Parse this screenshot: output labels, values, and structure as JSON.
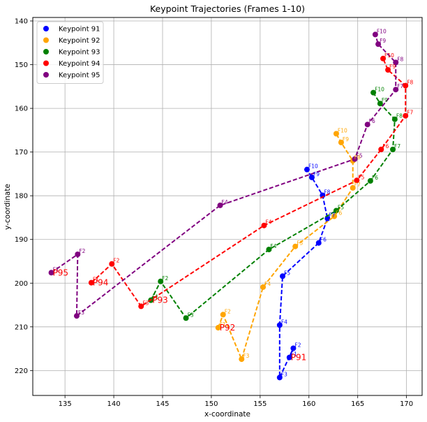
{
  "chart_data": {
    "type": "line",
    "title": "Keypoint Trajectories (Frames 1-10)",
    "xlabel": "x-coordinate",
    "ylabel": "y-coordinate",
    "xlim": [
      131.7,
      171.6
    ],
    "ylim": [
      225.7,
      139.2
    ],
    "y_inverted": true,
    "grid": true,
    "legend_position": "upper-left",
    "x_ticks": [
      135,
      140,
      145,
      150,
      155,
      160,
      165,
      170
    ],
    "y_ticks": [
      140,
      150,
      160,
      170,
      180,
      190,
      200,
      210,
      220
    ],
    "series": [
      {
        "name": "Keypoint 91",
        "color": "#0000ff",
        "end_label": "P91",
        "points": [
          {
            "frame": "F1",
            "x": 158.0,
            "y": 217.0
          },
          {
            "frame": "F2",
            "x": 158.4,
            "y": 214.9
          },
          {
            "frame": "F3",
            "x": 157.0,
            "y": 221.6
          },
          {
            "frame": "F4",
            "x": 157.0,
            "y": 209.6
          },
          {
            "frame": "F5",
            "x": 157.3,
            "y": 198.4
          },
          {
            "frame": "F6",
            "x": 161.0,
            "y": 190.8
          },
          {
            "frame": "F7",
            "x": 161.9,
            "y": 185.2
          },
          {
            "frame": "F8",
            "x": 161.4,
            "y": 179.9
          },
          {
            "frame": "F9",
            "x": 160.3,
            "y": 175.8
          },
          {
            "frame": "F10",
            "x": 159.8,
            "y": 174.0
          }
        ]
      },
      {
        "name": "Keypoint 92",
        "color": "#ffa500",
        "end_label": "P92",
        "points": [
          {
            "frame": "F1",
            "x": 150.7,
            "y": 210.2
          },
          {
            "frame": "F2",
            "x": 151.2,
            "y": 207.2
          },
          {
            "frame": "F3",
            "x": 153.1,
            "y": 217.4
          },
          {
            "frame": "F4",
            "x": 155.3,
            "y": 200.9
          },
          {
            "frame": "F5",
            "x": 158.6,
            "y": 191.6
          },
          {
            "frame": "F6",
            "x": 162.6,
            "y": 184.7
          },
          {
            "frame": "F7",
            "x": 164.5,
            "y": 178.2
          },
          {
            "frame": "F8",
            "x": 164.5,
            "y": 172.0
          },
          {
            "frame": "F9",
            "x": 163.3,
            "y": 167.8
          },
          {
            "frame": "F10",
            "x": 162.8,
            "y": 165.8
          }
        ]
      },
      {
        "name": "Keypoint 93",
        "color": "#008000",
        "end_label": "P93",
        "points": [
          {
            "frame": "F1",
            "x": 143.8,
            "y": 203.9
          },
          {
            "frame": "F2",
            "x": 144.8,
            "y": 199.6
          },
          {
            "frame": "F3",
            "x": 147.4,
            "y": 208.0
          },
          {
            "frame": "F4",
            "x": 155.9,
            "y": 192.3
          },
          {
            "frame": "F5",
            "x": 162.8,
            "y": 183.4
          },
          {
            "frame": "F6",
            "x": 166.3,
            "y": 176.6
          },
          {
            "frame": "F7",
            "x": 168.6,
            "y": 169.4
          },
          {
            "frame": "F8",
            "x": 168.8,
            "y": 162.5
          },
          {
            "frame": "F9",
            "x": 167.3,
            "y": 158.9
          },
          {
            "frame": "F10",
            "x": 166.6,
            "y": 156.4
          }
        ]
      },
      {
        "name": "Keypoint 94",
        "color": "#ff0000",
        "end_label": "P94",
        "points": [
          {
            "frame": "F1",
            "x": 137.7,
            "y": 199.9
          },
          {
            "frame": "F2",
            "x": 139.8,
            "y": 195.6
          },
          {
            "frame": "F3",
            "x": 142.8,
            "y": 205.3
          },
          {
            "frame": "F4",
            "x": 155.4,
            "y": 186.8
          },
          {
            "frame": "F5",
            "x": 164.9,
            "y": 176.5
          },
          {
            "frame": "F6",
            "x": 167.4,
            "y": 169.4
          },
          {
            "frame": "F7",
            "x": 169.9,
            "y": 161.7
          },
          {
            "frame": "F8",
            "x": 169.9,
            "y": 154.8
          },
          {
            "frame": "F9",
            "x": 168.1,
            "y": 151.2
          },
          {
            "frame": "F10",
            "x": 167.6,
            "y": 148.6
          }
        ]
      },
      {
        "name": "Keypoint 95",
        "color": "#800080",
        "end_label": "P95",
        "points": [
          {
            "frame": "F1",
            "x": 133.6,
            "y": 197.6
          },
          {
            "frame": "F2",
            "x": 136.3,
            "y": 193.4
          },
          {
            "frame": "F3",
            "x": 136.2,
            "y": 207.5
          },
          {
            "frame": "F4",
            "x": 150.9,
            "y": 182.2
          },
          {
            "frame": "F5",
            "x": 164.7,
            "y": 171.6
          },
          {
            "frame": "F6",
            "x": 166.0,
            "y": 163.7
          },
          {
            "frame": "F7",
            "x": 168.9,
            "y": 155.7
          },
          {
            "frame": "F8",
            "x": 168.9,
            "y": 149.5
          },
          {
            "frame": "F9",
            "x": 167.1,
            "y": 145.3
          },
          {
            "frame": "F10",
            "x": 166.8,
            "y": 143.1
          }
        ]
      }
    ]
  }
}
